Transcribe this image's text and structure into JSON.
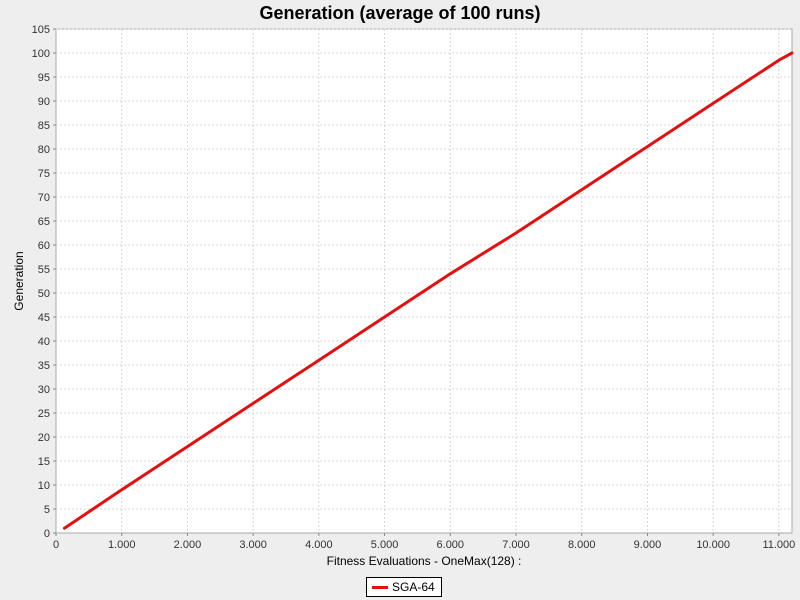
{
  "chart_data": {
    "type": "line",
    "title": "Generation (average of 100 runs)",
    "xlabel": "Fitness Evaluations - OneMax(128) :",
    "ylabel": "Generation",
    "xlim": [
      0,
      11200
    ],
    "ylim": [
      0,
      105
    ],
    "x_ticks": [
      0,
      1000,
      2000,
      3000,
      4000,
      5000,
      6000,
      7000,
      8000,
      9000,
      10000,
      11000
    ],
    "x_tick_labels": [
      "0",
      "1.000",
      "2.000",
      "3.000",
      "4.000",
      "5.000",
      "6.000",
      "7.000",
      "8.000",
      "9.000",
      "10.000",
      "11.000"
    ],
    "y_ticks": [
      0,
      5,
      10,
      15,
      20,
      25,
      30,
      35,
      40,
      45,
      50,
      55,
      60,
      65,
      70,
      75,
      80,
      85,
      90,
      95,
      100,
      105
    ],
    "grid": true,
    "legend_position": "bottom-center",
    "series": [
      {
        "name": "SGA-64",
        "color": "#e31010",
        "x": [
          128,
          1000,
          2000,
          3000,
          4000,
          5000,
          6000,
          7000,
          8000,
          9000,
          10000,
          11000,
          11200
        ],
        "y": [
          1,
          9,
          18,
          27,
          36,
          45,
          54,
          62.5,
          71.5,
          80.5,
          89.5,
          98.5,
          100
        ]
      }
    ]
  }
}
